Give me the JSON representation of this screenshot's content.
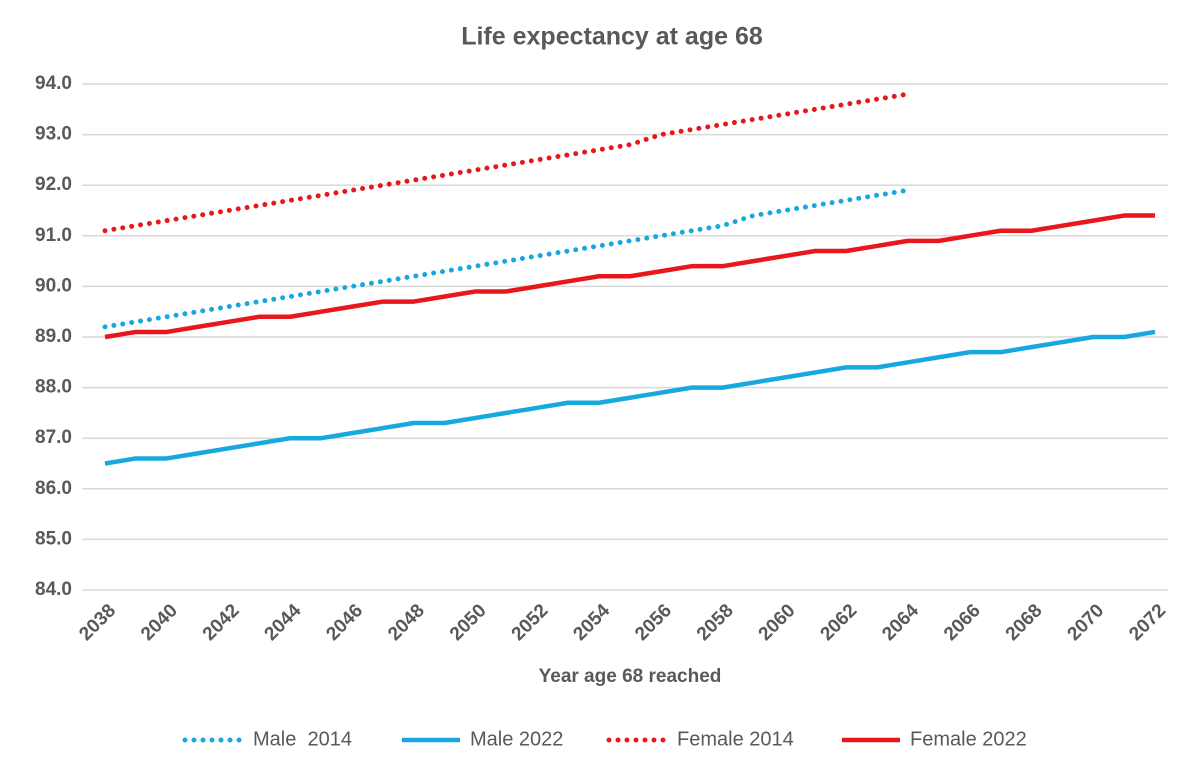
{
  "chart_data": {
    "type": "line",
    "title": "Life expectancy at age 68",
    "x_label": "Year age 68 reached",
    "x": [
      2038,
      2039,
      2040,
      2041,
      2042,
      2043,
      2044,
      2045,
      2046,
      2047,
      2048,
      2049,
      2050,
      2051,
      2052,
      2053,
      2054,
      2055,
      2056,
      2057,
      2058,
      2059,
      2060,
      2061,
      2062,
      2063,
      2064,
      2065,
      2066,
      2067,
      2068,
      2069,
      2070,
      2071,
      2072
    ],
    "xlim": [
      2038,
      2072
    ],
    "xticks": [
      2038,
      2040,
      2042,
      2044,
      2046,
      2048,
      2050,
      2052,
      2054,
      2056,
      2058,
      2060,
      2062,
      2064,
      2066,
      2068,
      2070,
      2072
    ],
    "ylim": [
      84,
      94
    ],
    "yticks": [
      {
        "value": 84,
        "label": "84.0"
      },
      {
        "value": 85,
        "label": "85.0"
      },
      {
        "value": 86,
        "label": "86.0"
      },
      {
        "value": 87,
        "label": "87.0"
      },
      {
        "value": 88,
        "label": "88.0"
      },
      {
        "value": 89,
        "label": "89.0"
      },
      {
        "value": 90,
        "label": "90.0"
      },
      {
        "value": 91,
        "label": "91.0"
      },
      {
        "value": 92,
        "label": "92.0"
      },
      {
        "value": 93,
        "label": "93.0"
      },
      {
        "value": 94,
        "label": "94.0"
      }
    ],
    "grid": true,
    "legend": "bottom",
    "series": [
      {
        "name": "Male  2014",
        "color": "#18a8e0",
        "style": "dotted",
        "values": [
          89.2,
          89.3,
          89.4,
          89.5,
          89.6,
          89.7,
          89.8,
          89.9,
          90.0,
          90.1,
          90.2,
          90.3,
          90.4,
          90.5,
          90.6,
          90.7,
          90.8,
          90.9,
          91.0,
          91.1,
          91.2,
          91.4,
          91.5,
          91.6,
          91.7,
          91.8,
          91.9,
          null,
          null,
          null,
          null,
          null,
          null,
          null,
          null
        ]
      },
      {
        "name": "Male 2022",
        "color": "#18a8e0",
        "style": "solid",
        "values": [
          86.5,
          86.6,
          86.6,
          86.7,
          86.8,
          86.9,
          87.0,
          87.0,
          87.1,
          87.2,
          87.3,
          87.3,
          87.4,
          87.5,
          87.6,
          87.7,
          87.7,
          87.8,
          87.9,
          88.0,
          88.0,
          88.1,
          88.2,
          88.3,
          88.4,
          88.4,
          88.5,
          88.6,
          88.7,
          88.7,
          88.8,
          88.9,
          89.0,
          89.0,
          89.1
        ]
      },
      {
        "name": "Female 2014",
        "color": "#e8171b",
        "style": "dotted",
        "values": [
          91.1,
          91.2,
          91.3,
          91.4,
          91.5,
          91.6,
          91.7,
          91.8,
          91.9,
          92.0,
          92.1,
          92.2,
          92.3,
          92.4,
          92.5,
          92.6,
          92.7,
          92.8,
          93.0,
          93.1,
          93.2,
          93.3,
          93.4,
          93.5,
          93.6,
          93.7,
          93.8,
          null,
          null,
          null,
          null,
          null,
          null,
          null,
          null
        ]
      },
      {
        "name": "Female 2022",
        "color": "#e8171b",
        "style": "solid",
        "values": [
          89.0,
          89.1,
          89.1,
          89.2,
          89.3,
          89.4,
          89.4,
          89.5,
          89.6,
          89.7,
          89.7,
          89.8,
          89.9,
          89.9,
          90.0,
          90.1,
          90.2,
          90.2,
          90.3,
          90.4,
          90.4,
          90.5,
          90.6,
          90.7,
          90.7,
          90.8,
          90.9,
          90.9,
          91.0,
          91.1,
          91.1,
          91.2,
          91.3,
          91.4,
          91.4
        ]
      }
    ]
  }
}
